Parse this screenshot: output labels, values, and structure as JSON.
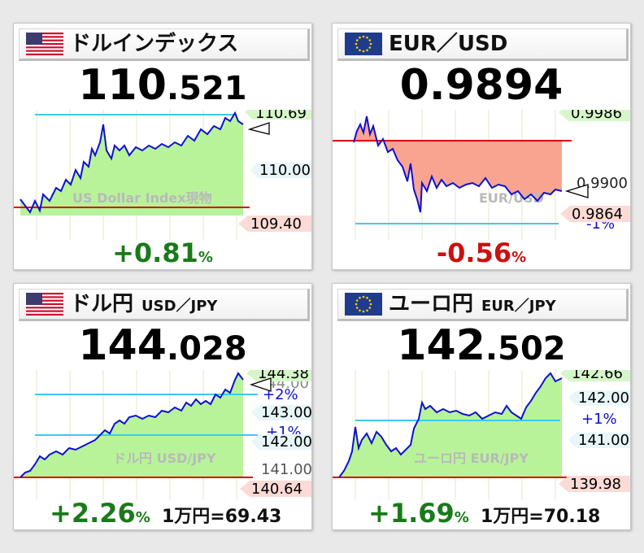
{
  "colors": {
    "up": "#1a7a1a",
    "down": "#cc1010",
    "line": "#1010d0",
    "area_up": "#b8f39a",
    "area_down": "#f8a490",
    "ref_red": "#e00000",
    "ref_cyan": "#40c8f0"
  },
  "panels": [
    {
      "id": "dxy",
      "flag_icon": "us-flag-icon",
      "title": "ドルインデックス",
      "subtitle": "",
      "price_int": "110",
      "price_dec": ".521",
      "change": "+0.81",
      "change_unit": "%",
      "change_color": "#1a7a1a",
      "per10k": "",
      "watermark": "US Dollar Index現物",
      "labels": {
        "high": "110.69",
        "mid": [
          "110.00"
        ],
        "low": "109.40",
        "pct": []
      }
    },
    {
      "id": "eurusd",
      "flag_icon": "eu-flag-icon",
      "title": "EUR／USD",
      "subtitle": "",
      "price_int": "0",
      "price_dec": ".9894",
      "change": "-0.56",
      "change_unit": "%",
      "change_color": "#cc1010",
      "per10k": "",
      "watermark": "EUR/USD",
      "labels": {
        "high": "0.9986",
        "mid": [
          "0.9900"
        ],
        "low": "0.9864",
        "pct": [
          "-1%"
        ]
      }
    },
    {
      "id": "usdjpy",
      "flag_icon": "us-flag-icon",
      "title": "ドル円",
      "subtitle": "USD／JPY",
      "price_int": "144",
      "price_dec": ".028",
      "change": "+2.26",
      "change_unit": "%",
      "change_color": "#1a7a1a",
      "per10k": "1万円=69.43",
      "watermark": "ドル円 USD/JPY",
      "labels": {
        "high": "144.38",
        "mid": [
          "144.00",
          "143.00",
          "142.00",
          "141.00"
        ],
        "low": "140.64",
        "pct": [
          "+2%",
          "+1%"
        ]
      }
    },
    {
      "id": "eurjpy",
      "flag_icon": "eu-flag-icon",
      "title": "ユーロ円",
      "subtitle": "EUR／JPY",
      "price_int": "142",
      "price_dec": ".502",
      "change": "+1.69",
      "change_unit": "%",
      "change_color": "#1a7a1a",
      "per10k": "1万円=70.18",
      "watermark": "ユーロ円 EUR/JPY",
      "labels": {
        "high": "142.66",
        "mid": [
          "142.00",
          "141.00"
        ],
        "low": "139.98",
        "pct": [
          "+1%"
        ]
      }
    }
  ],
  "chart_data": [
    {
      "type": "area",
      "title": "ドルインデックス",
      "xlabel": "",
      "ylabel": "",
      "open": 109.64,
      "last": 110.521,
      "high": 110.69,
      "low": 109.4,
      "y_ticks": [
        110.0
      ]
    },
    {
      "type": "area",
      "title": "EUR／USD",
      "xlabel": "",
      "ylabel": "",
      "open": 0.995,
      "last": 0.9894,
      "high": 0.9986,
      "low": 0.9864,
      "y_ticks": [
        0.99
      ]
    },
    {
      "type": "area",
      "title": "ドル円",
      "xlabel": "",
      "ylabel": "",
      "open": 140.84,
      "last": 144.028,
      "high": 144.38,
      "low": 140.64,
      "y_ticks": [
        144.0,
        143.0,
        142.0,
        141.0
      ]
    },
    {
      "type": "area",
      "title": "ユーロ円",
      "xlabel": "",
      "ylabel": "",
      "open": 140.13,
      "last": 142.502,
      "high": 142.66,
      "low": 139.98,
      "y_ticks": [
        142.0,
        141.0
      ]
    }
  ]
}
